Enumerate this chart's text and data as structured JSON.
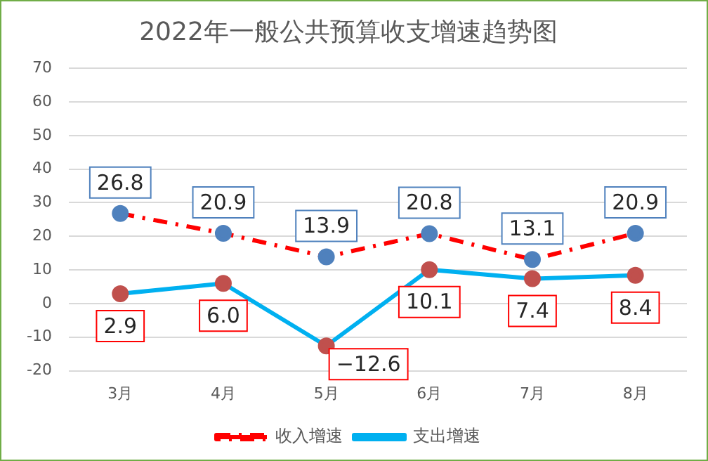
{
  "chart_data": {
    "type": "line",
    "title": "2022年一般公共预算收支增速趋势图",
    "categories": [
      "3月",
      "4月",
      "5月",
      "6月",
      "7月",
      "8月"
    ],
    "series": [
      {
        "name": "收入增速",
        "color": "#ff0000",
        "colors": [
          "#4f81bd",
          "#4f81bd",
          "#4f81bd",
          "#4f81bd",
          "#4f81bd",
          "#4f81bd"
        ],
        "line_style": "dashed",
        "values": [
          26.8,
          20.9,
          13.9,
          20.8,
          13.1,
          20.9
        ],
        "value_labels": [
          "26.8",
          "20.9",
          "13.9",
          "20.8",
          "13.1",
          "20.9"
        ]
      },
      {
        "name": "支出增速",
        "color": "#00b0f0",
        "colors": [
          "#c0504d",
          "#c0504d",
          "#c0504d",
          "#c0504d",
          "#c0504d",
          "#c0504d"
        ],
        "line_style": "solid",
        "values": [
          2.9,
          6.0,
          -12.6,
          10.1,
          7.4,
          8.4
        ],
        "value_labels": [
          "2.9",
          "6.0",
          "−12.6",
          "10.1",
          "7.4",
          "8.4"
        ]
      }
    ],
    "ylim": [
      -20,
      70
    ],
    "yticks": [
      -20,
      -10,
      0,
      10,
      20,
      30,
      40,
      50,
      60,
      70
    ],
    "grid": "y",
    "legend": "bottom",
    "marker": "circle"
  }
}
